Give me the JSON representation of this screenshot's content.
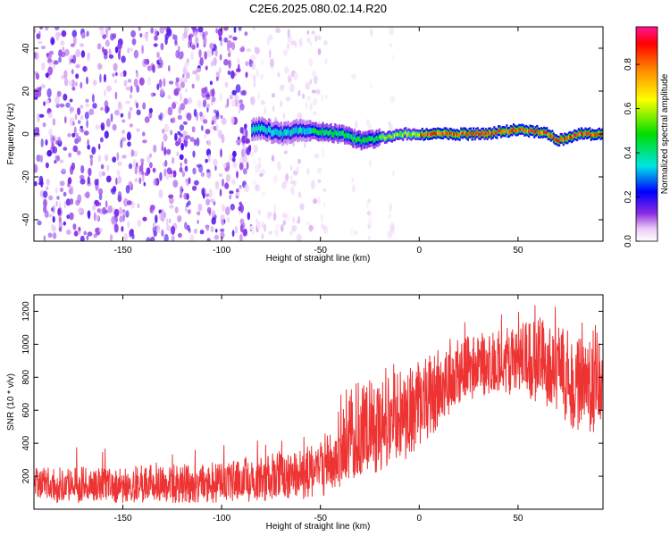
{
  "title": "C2E6.2025.080.02.14.R20",
  "chart_data": [
    {
      "type": "heatmap",
      "xlabel": "Height of straight line (km)",
      "ylabel": "Frequency (Hz)",
      "xlim": [
        -195,
        93
      ],
      "ylim": [
        -50,
        50
      ],
      "xticks": [
        -150,
        -100,
        -50,
        0,
        50
      ],
      "xtick_labels": [
        "-150",
        "-100",
        "-50",
        "0",
        "50"
      ],
      "yticks": [
        -40,
        -20,
        0,
        20,
        40
      ],
      "ytick_labels": [
        "-40",
        "-20",
        "0",
        "20",
        "40"
      ],
      "colorbar": {
        "label": "Normalized spectral amplitude",
        "range": [
          0,
          0.97
        ],
        "ticks": [
          0.0,
          0.2,
          0.4,
          0.6,
          0.8
        ],
        "tick_labels": [
          "0.0",
          "0.2",
          "0.4",
          "0.6",
          "0.8"
        ],
        "colormap": [
          "#ffffff",
          "#8a2be2",
          "#0000ff",
          "#00e5e5",
          "#00dd00",
          "#ffff00",
          "#ff8800",
          "#ff0000",
          "#ff1493"
        ]
      },
      "features": [
        {
          "region": "noise",
          "x_range": [
            -195,
            -85
          ],
          "freq_range": [
            -50,
            50
          ],
          "amplitude": 0.12
        },
        {
          "region": "faint-noise",
          "x_range": [
            -85,
            -50
          ],
          "freq_range": [
            -50,
            50
          ],
          "amplitude": 0.05
        },
        {
          "region": "sparse-columns",
          "x_range": [
            -50,
            -12
          ],
          "freq_range": [
            -50,
            50
          ],
          "amplitude": 0.03
        },
        {
          "region": "signal-trace",
          "points": [
            [
              -85,
              2
            ],
            [
              -80,
              3
            ],
            [
              -75,
              1
            ],
            [
              -70,
              0
            ],
            [
              -60,
              2
            ],
            [
              -50,
              1
            ],
            [
              -40,
              0
            ],
            [
              -30,
              -3
            ],
            [
              -20,
              -2
            ],
            [
              -10,
              0
            ],
            [
              0,
              0
            ],
            [
              20,
              0
            ],
            [
              35,
              0
            ],
            [
              40,
              1
            ],
            [
              50,
              2
            ],
            [
              60,
              1
            ],
            [
              65,
              0
            ],
            [
              70,
              -3
            ],
            [
              75,
              -2
            ],
            [
              80,
              0
            ],
            [
              93,
              0
            ]
          ],
          "amplitude_peak": 0.95
        }
      ]
    },
    {
      "type": "line",
      "xlabel": "Height of straight line (km)",
      "ylabel": "SNR (10 * v/v)",
      "xlim": [
        -195,
        93
      ],
      "ylim": [
        0,
        1300
      ],
      "xticks": [
        -150,
        -100,
        -50,
        0,
        50
      ],
      "xtick_labels": [
        "-150",
        "-100",
        "-50",
        "0",
        "50"
      ],
      "yticks": [
        200,
        400,
        600,
        800,
        1000,
        1200
      ],
      "ytick_labels": [
        "200",
        "400",
        "600",
        "800",
        "1000",
        "1200"
      ],
      "series": [
        {
          "color": "#ee3333",
          "envelope_x": [
            -195,
            -150,
            -100,
            -80,
            -60,
            -50,
            -40,
            -35,
            -30,
            -20,
            -10,
            0,
            10,
            20,
            30,
            40,
            50,
            60,
            70,
            80,
            93
          ],
          "envelope_lower": [
            40,
            40,
            40,
            50,
            60,
            80,
            100,
            130,
            200,
            230,
            280,
            360,
            500,
            640,
            680,
            700,
            690,
            650,
            560,
            460,
            420
          ],
          "envelope_upper": [
            250,
            260,
            280,
            340,
            370,
            420,
            560,
            760,
            780,
            800,
            850,
            900,
            940,
            1040,
            1060,
            1100,
            1120,
            1150,
            1130,
            1040,
            1000
          ],
          "center": [
            140,
            145,
            155,
            180,
            200,
            240,
            320,
            380,
            430,
            480,
            540,
            620,
            700,
            800,
            840,
            860,
            870,
            880,
            830,
            760,
            700
          ]
        }
      ]
    }
  ]
}
